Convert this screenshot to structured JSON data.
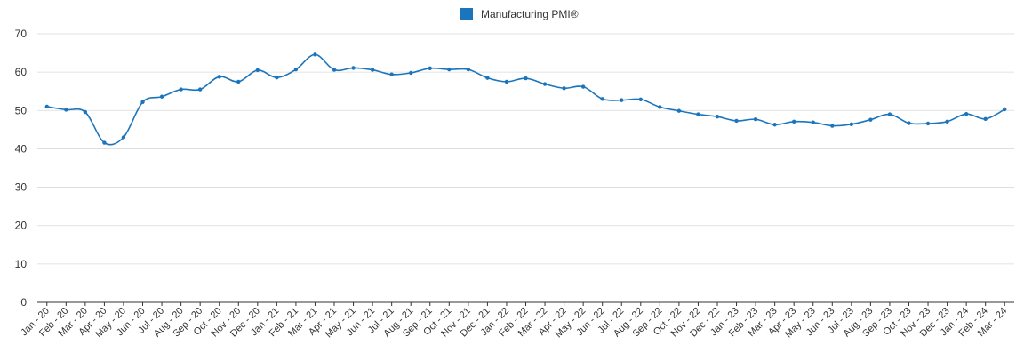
{
  "colors": {
    "series": "#1b75bc",
    "grid": "#d9d9d9",
    "axis": "#333333",
    "text": "#333333"
  },
  "chart_data": {
    "type": "line",
    "title": "",
    "xlabel": "",
    "ylabel": "",
    "ylim": [
      0,
      70
    ],
    "yticks": [
      0,
      10,
      20,
      30,
      40,
      50,
      60,
      70
    ],
    "grid": true,
    "legend_position": "top-center",
    "categories": [
      "Jan - 20",
      "Feb - 20",
      "Mar - 20",
      "Apr - 20",
      "May - 20",
      "Jun - 20",
      "Jul - 20",
      "Aug - 20",
      "Sep - 20",
      "Oct - 20",
      "Nov - 20",
      "Dec - 20",
      "Jan - 21",
      "Feb - 21",
      "Mar - 21",
      "Apr - 21",
      "May - 21",
      "Jun - 21",
      "Jul - 21",
      "Aug - 21",
      "Sep - 21",
      "Oct - 21",
      "Nov - 21",
      "Dec - 21",
      "Jan - 22",
      "Feb - 22",
      "Mar - 22",
      "Apr - 22",
      "May - 22",
      "Jun - 22",
      "Jul - 22",
      "Aug - 22",
      "Sep - 22",
      "Oct - 22",
      "Nov - 22",
      "Dec - 22",
      "Jan - 23",
      "Feb - 23",
      "Mar - 23",
      "Apr - 23",
      "May - 23",
      "Jun - 23",
      "Jul - 23",
      "Aug - 23",
      "Sep - 23",
      "Oct - 23",
      "Nov - 23",
      "Dec - 23",
      "Jan - 24",
      "Feb - 24",
      "Mar - 24"
    ],
    "series": [
      {
        "name": "Manufacturing PMI®",
        "values": [
          51.0,
          50.2,
          49.6,
          41.6,
          43.0,
          52.2,
          53.6,
          55.5,
          55.5,
          58.8,
          57.5,
          60.5,
          58.6,
          60.7,
          64.6,
          60.6,
          61.1,
          60.6,
          59.4,
          59.8,
          61.0,
          60.7,
          60.7,
          58.5,
          57.5,
          58.4,
          56.9,
          55.8,
          56.2,
          53.0,
          52.7,
          52.9,
          50.9,
          49.9,
          49.0,
          48.4,
          47.3,
          47.7,
          46.3,
          47.1,
          46.9,
          46.0,
          46.4,
          47.6,
          49.0,
          46.7,
          46.6,
          47.1,
          49.1,
          47.8,
          50.3
        ]
      }
    ]
  }
}
